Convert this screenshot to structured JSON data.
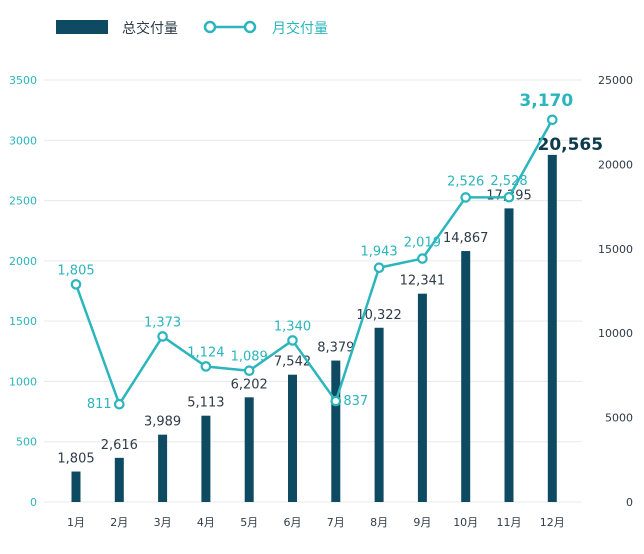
{
  "chart_data": {
    "type": "bar",
    "categories": [
      "1月",
      "2月",
      "3月",
      "4月",
      "5月",
      "6月",
      "7月",
      "8月",
      "9月",
      "10月",
      "11月",
      "12月"
    ],
    "series": [
      {
        "name": "总交付量",
        "type": "bar",
        "axis": "right",
        "color": "#0f4a63",
        "values": [
          1805,
          2616,
          3989,
          5113,
          6202,
          7542,
          8379,
          10322,
          12341,
          14867,
          17395,
          20565
        ],
        "labels": [
          "1,805",
          "2,616",
          "3,989",
          "5,113",
          "6,202",
          "7,542",
          "8,379",
          "10,322",
          "12,341",
          "14,867",
          "17,395",
          "20,565"
        ]
      },
      {
        "name": "月交付量",
        "type": "line",
        "axis": "left",
        "color": "#2bb5bc",
        "values": [
          1805,
          811,
          1373,
          1124,
          1089,
          1340,
          837,
          1943,
          2019,
          2526,
          2528,
          3170
        ],
        "labels": [
          "1,805",
          "811",
          "1,373",
          "1,124",
          "1,089",
          "1,340",
          "837",
          "1,943",
          "2,019",
          "2,526",
          "2,528",
          "3,170"
        ]
      }
    ],
    "y_left": {
      "min": 0,
      "max": 3500,
      "ticks": [
        "0",
        "500",
        "1000",
        "1500",
        "2000",
        "2500",
        "3000",
        "3500"
      ]
    },
    "y_right": {
      "min": 0,
      "max": 25000,
      "ticks": [
        "0",
        "5000",
        "10000",
        "15000",
        "20000",
        "25000"
      ]
    },
    "grid": true,
    "legend_position": "top-left",
    "title": "",
    "xlabel": "",
    "ylabel": ""
  }
}
